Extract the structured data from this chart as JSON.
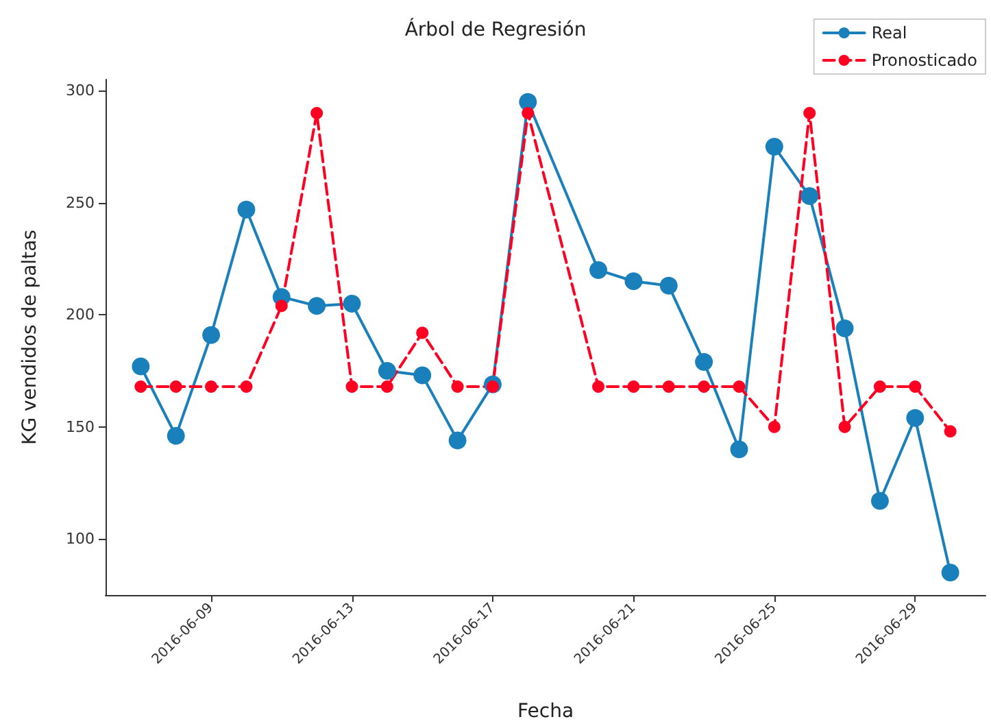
{
  "chart_data": {
    "type": "line",
    "title": "Árbol de Regresión",
    "xlabel": "Fecha",
    "ylabel": "KG vendidos de paltas",
    "x": [
      "2016-06-07",
      "2016-06-08",
      "2016-06-09",
      "2016-06-10",
      "2016-06-11",
      "2016-06-12",
      "2016-06-13",
      "2016-06-14",
      "2016-06-15",
      "2016-06-16",
      "2016-06-17",
      "2016-06-18",
      "2016-06-20",
      "2016-06-21",
      "2016-06-22",
      "2016-06-23",
      "2016-06-24",
      "2016-06-25",
      "2016-06-26",
      "2016-06-27",
      "2016-06-28",
      "2016-06-29",
      "2016-06-30"
    ],
    "series": [
      {
        "name": "Real",
        "color": "#1a80bb",
        "line_style": "solid",
        "values": [
          177,
          146,
          191,
          247,
          208,
          204,
          205,
          175,
          173,
          144,
          169,
          295,
          220,
          215,
          213,
          179,
          140,
          275,
          253,
          194,
          117,
          154,
          85
        ]
      },
      {
        "name": "Pronosticado",
        "color": "#ff0022",
        "line_style": "dashed",
        "values": [
          168,
          168,
          168,
          168,
          204,
          290,
          168,
          168,
          192,
          168,
          168,
          290,
          168,
          168,
          168,
          168,
          168,
          150,
          290,
          150,
          168,
          168,
          148
        ]
      }
    ],
    "xlim": [
      "2016-06-06",
      "2016-07-01"
    ],
    "xticks": [
      "2016-06-09",
      "2016-06-13",
      "2016-06-17",
      "2016-06-21",
      "2016-06-25",
      "2016-06-29"
    ],
    "ylim": [
      75,
      305
    ],
    "yticks": [
      100,
      150,
      200,
      250,
      300
    ],
    "grid": false,
    "legend": "top right",
    "marker": "circle"
  }
}
